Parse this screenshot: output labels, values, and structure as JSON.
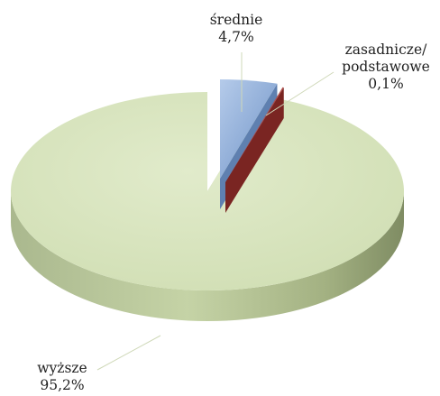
{
  "chart_data": {
    "type": "pie",
    "title": "",
    "slices": [
      {
        "label": "średnie",
        "value_label": "4,7%",
        "value": 4.7,
        "color": "#8aabd8"
      },
      {
        "label": "zasadnicze/\npodstawowe",
        "value_label": "0,1%",
        "value": 0.1,
        "color": "#c0504d"
      },
      {
        "label": "wyższe",
        "value_label": "95,2%",
        "value": 95.2,
        "color": "#d7e4bd"
      }
    ],
    "legend": "none"
  }
}
